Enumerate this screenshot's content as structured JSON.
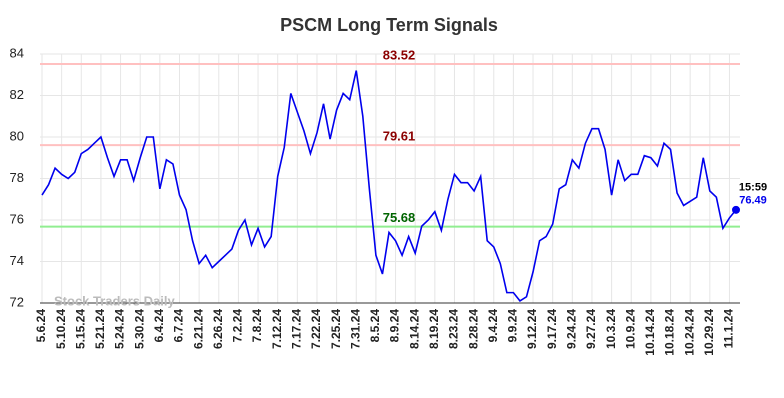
{
  "chart_data": {
    "type": "line",
    "title": "PSCM Long Term Signals",
    "categories": [
      "5.6.24",
      null,
      null,
      "5.10.24",
      null,
      null,
      "5.15.24",
      null,
      null,
      "5.21.24",
      null,
      null,
      "5.24.24",
      null,
      null,
      "5.30.24",
      null,
      null,
      "6.4.24",
      null,
      null,
      "6.7.24",
      null,
      null,
      "6.21.24",
      null,
      null,
      "6.26.24",
      null,
      null,
      "7.2.24",
      null,
      null,
      "7.8.24",
      null,
      null,
      "7.12.24",
      null,
      null,
      "7.17.24",
      null,
      null,
      "7.22.24",
      null,
      null,
      "7.25.24",
      null,
      null,
      "7.31.24",
      null,
      null,
      "8.5.24",
      null,
      null,
      "8.9.24",
      null,
      null,
      "8.14.24",
      null,
      null,
      "8.19.24",
      null,
      null,
      "8.23.24",
      null,
      null,
      "8.28.24",
      null,
      null,
      "9.4.24",
      null,
      null,
      "9.9.24",
      null,
      null,
      "9.12.24",
      null,
      null,
      "9.17.24",
      null,
      null,
      "9.24.24",
      null,
      null,
      "9.27.24",
      null,
      null,
      "10.3.24",
      null,
      null,
      "10.9.24",
      null,
      null,
      "10.14.24",
      null,
      null,
      "10.18.24",
      null,
      null,
      "10.24.24",
      null,
      null,
      "10.29.24",
      null,
      null,
      "11.1.24",
      null
    ],
    "series": [
      {
        "color": "#0000ee",
        "values": [
          77.2,
          77.7,
          78.5,
          78.2,
          78.0,
          78.3,
          79.2,
          79.4,
          79.7,
          80.0,
          79.0,
          78.1,
          78.9,
          78.9,
          77.9,
          79.0,
          80.0,
          80.0,
          77.5,
          78.9,
          78.7,
          77.2,
          76.5,
          75.0,
          73.9,
          74.3,
          73.7,
          74.0,
          74.3,
          74.6,
          75.5,
          76.0,
          74.8,
          75.6,
          74.7,
          75.2,
          78.1,
          79.5,
          82.1,
          81.2,
          80.3,
          79.2,
          80.2,
          81.6,
          79.9,
          81.3,
          82.1,
          81.8,
          83.2,
          81.0,
          77.5,
          74.3,
          73.4,
          75.4,
          75.0,
          74.3,
          75.2,
          74.4,
          75.7,
          76.0,
          76.4,
          75.5,
          77.0,
          78.2,
          77.8,
          77.8,
          77.4,
          78.1,
          75.0,
          74.7,
          73.9,
          72.5,
          72.5,
          72.1,
          72.3,
          73.5,
          75.0,
          75.2,
          75.8,
          77.5,
          77.7,
          78.9,
          78.5,
          79.7,
          80.4,
          80.4,
          79.4,
          77.2,
          78.9,
          77.9,
          78.2,
          78.2,
          79.1,
          79.0,
          78.6,
          79.7,
          79.4,
          77.3,
          76.7,
          76.9,
          77.1,
          79.0,
          77.4,
          77.1,
          75.6,
          76.1,
          76.49
        ]
      }
    ],
    "ylim": [
      72,
      84
    ],
    "yticks": [
      72,
      74,
      76,
      78,
      80,
      82,
      84
    ],
    "grid": true,
    "hlines": [
      {
        "value": 83.52,
        "color": "#ffc0c0",
        "label_color": "#8b0000"
      },
      {
        "value": 79.61,
        "color": "#ffc0c0",
        "label_color": "#8b0000"
      },
      {
        "value": 75.68,
        "color": "#90ee90",
        "label_color": "#006400"
      }
    ],
    "last_time": "15:59",
    "watermark": "Stock Traders Daily"
  }
}
